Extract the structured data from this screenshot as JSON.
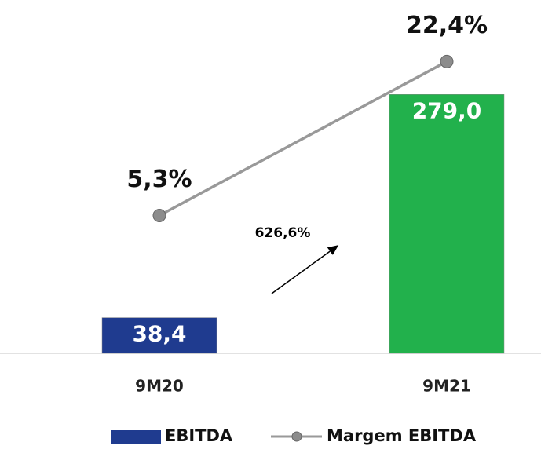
{
  "chart_data": {
    "type": "combo",
    "categories": [
      "9M20",
      "9M21"
    ],
    "series": [
      {
        "name": "EBITDA",
        "type": "bar",
        "color": "#1f3b8f",
        "values": [
          38.4,
          279.0
        ],
        "value_labels": [
          "38,4",
          "279,0"
        ]
      },
      {
        "name": "Margem EBITDA",
        "type": "line",
        "color": "#999999",
        "axis": "y2",
        "values": [
          5.3,
          22.4
        ],
        "value_labels": [
          "5,3%",
          "22,4%"
        ]
      }
    ],
    "bar_colors": [
      "#1f3b8f",
      "#22b14c"
    ],
    "ylim": [
      0,
      330
    ],
    "y2lim": [
      -10,
      24
    ],
    "annotation": "626,6%",
    "legend": "bottom"
  }
}
